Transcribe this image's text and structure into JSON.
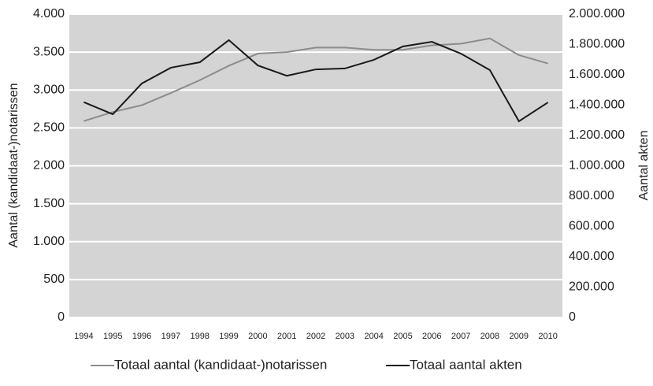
{
  "chart_data": {
    "type": "line",
    "y_label": "Aantal (kandidaat-)notarissen",
    "y2_label": "Aantal akten",
    "categories": [
      "1994",
      "1995",
      "1996",
      "1997",
      "1998",
      "1999",
      "2000",
      "2001",
      "2002",
      "2003",
      "2004",
      "2005",
      "2006",
      "2007",
      "2008",
      "2009",
      "2010"
    ],
    "series": [
      {
        "name": "Totaal aantal (kandidaat-)notarissen",
        "color": "#8c8c8c",
        "axis": "y",
        "values": [
          2590,
          2710,
          2800,
          2960,
          3130,
          3320,
          3480,
          3500,
          3560,
          3560,
          3530,
          3530,
          3590,
          3610,
          3680,
          3460,
          3350
        ]
      },
      {
        "name": "Totaal aantal akten",
        "color": "#1a1a1a",
        "axis": "y2",
        "values": [
          1420000,
          1340000,
          1543000,
          1647000,
          1683000,
          1829000,
          1662000,
          1594000,
          1636000,
          1642000,
          1699000,
          1787000,
          1818000,
          1740000,
          1631000,
          1294000,
          1418000
        ]
      }
    ],
    "ylim": [
      0,
      4000
    ],
    "yticks": [
      0,
      500,
      {
        "value": 1000,
        "label": "1.000"
      },
      {
        "value": 1500,
        "label": "1.500"
      },
      {
        "value": 2000,
        "label": "2.000"
      },
      {
        "value": 2500,
        "label": "2.500"
      },
      {
        "value": 3000,
        "label": "3.000"
      },
      {
        "value": 3500,
        "label": "3.500"
      },
      {
        "value": 4000,
        "label": "4.000"
      }
    ],
    "y2lim": [
      0,
      2000000
    ],
    "y2ticks": [
      0,
      {
        "value": 200000,
        "label": "200.000"
      },
      {
        "value": 400000,
        "label": "400.000"
      },
      {
        "value": 600000,
        "label": "600.000"
      },
      {
        "value": 800000,
        "label": "800.000"
      },
      {
        "value": 1000000,
        "label": "1.000.000"
      },
      {
        "value": 1200000,
        "label": "1.200.000"
      },
      {
        "value": 1400000,
        "label": "1.400.000"
      },
      {
        "value": 1600000,
        "label": "1.600.000"
      },
      {
        "value": 1800000,
        "label": "1.800.000"
      },
      {
        "value": 2000000,
        "label": "2.000.000"
      }
    ],
    "grid": true,
    "legend": "bottom",
    "background": "#d4d4d4"
  }
}
